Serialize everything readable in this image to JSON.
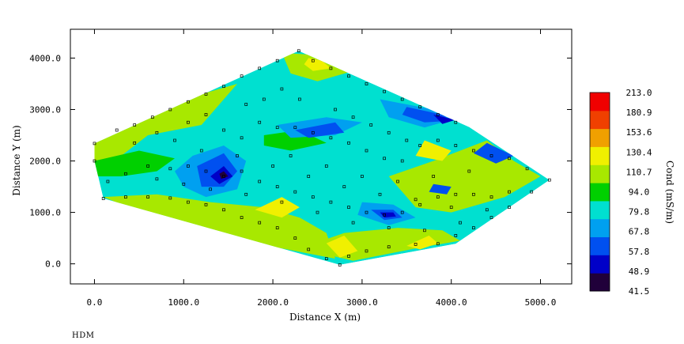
{
  "chart_data": {
    "type": "contour",
    "xlabel": "Distance X (m)",
    "ylabel": "Distance Y (m)",
    "xlim": [
      -270,
      5350
    ],
    "ylim": [
      -390,
      4560
    ],
    "x_ticks": [
      0,
      1000,
      2000,
      3000,
      4000,
      5000
    ],
    "x_tick_labels": [
      "0.0",
      "1000.0",
      "2000.0",
      "3000.0",
      "4000.0",
      "5000.0"
    ],
    "y_ticks": [
      0,
      1000,
      2000,
      3000,
      4000
    ],
    "y_tick_labels": [
      "0.0",
      "1000.0",
      "2000.0",
      "3000.0",
      "4000.0"
    ],
    "colorbar": {
      "label": "Cond (mS/m)",
      "levels": [
        41.5,
        48.9,
        57.8,
        67.8,
        79.8,
        94.0,
        110.7,
        130.4,
        153.6,
        180.9,
        213.0
      ],
      "level_labels": [
        "41.5",
        "48.9",
        "57.8",
        "67.8",
        "79.8",
        "94.0",
        "110.7",
        "130.4",
        "153.6",
        "180.9",
        "213.0"
      ],
      "colors": [
        "#20003a",
        "#0000c8",
        "#0050f0",
        "#00a0f0",
        "#00e0d0",
        "#00d000",
        "#a8e800",
        "#f0f000",
        "#f0a000",
        "#f04000",
        "#f00000"
      ]
    },
    "survey_boundary": [
      [
        0,
        2340
      ],
      [
        2290,
        4140
      ],
      [
        4200,
        2660
      ],
      [
        5100,
        1630
      ],
      [
        4050,
        390
      ],
      [
        2750,
        -20
      ],
      [
        100,
        1270
      ],
      [
        0,
        2000
      ]
    ],
    "stations": [
      [
        0,
        2340
      ],
      [
        0,
        2000
      ],
      [
        100,
        1270
      ],
      [
        250,
        2600
      ],
      [
        450,
        2350
      ],
      [
        700,
        2550
      ],
      [
        900,
        2400
      ],
      [
        1050,
        2750
      ],
      [
        1250,
        2900
      ],
      [
        1450,
        2600
      ],
      [
        1650,
        2450
      ],
      [
        1850,
        2750
      ],
      [
        2050,
        2650
      ],
      [
        2250,
        2650
      ],
      [
        2450,
        2550
      ],
      [
        2650,
        2450
      ],
      [
        2850,
        2350
      ],
      [
        3050,
        2200
      ],
      [
        3250,
        2050
      ],
      [
        3450,
        2000
      ],
      [
        3650,
        2300
      ],
      [
        3850,
        2400
      ],
      [
        4050,
        2300
      ],
      [
        4250,
        2200
      ],
      [
        4450,
        2100
      ],
      [
        4650,
        2050
      ],
      [
        4850,
        1850
      ],
      [
        5100,
        1630
      ],
      [
        4900,
        1400
      ],
      [
        4650,
        1100
      ],
      [
        4450,
        900
      ],
      [
        4250,
        700
      ],
      [
        4050,
        550
      ],
      [
        3850,
        390
      ],
      [
        3600,
        380
      ],
      [
        3300,
        330
      ],
      [
        3050,
        250
      ],
      [
        2850,
        150
      ],
      [
        2750,
        -20
      ],
      [
        2600,
        100
      ],
      [
        2400,
        280
      ],
      [
        2250,
        500
      ],
      [
        2050,
        700
      ],
      [
        1850,
        800
      ],
      [
        1650,
        900
      ],
      [
        1450,
        1050
      ],
      [
        1250,
        1150
      ],
      [
        1050,
        1200
      ],
      [
        850,
        1280
      ],
      [
        600,
        1300
      ],
      [
        350,
        1300
      ],
      [
        150,
        1600
      ],
      [
        350,
        1750
      ],
      [
        600,
        1900
      ],
      [
        850,
        1850
      ],
      [
        1050,
        1900
      ],
      [
        1250,
        1800
      ],
      [
        1450,
        1700
      ],
      [
        1650,
        1800
      ],
      [
        1850,
        1600
      ],
      [
        2050,
        1500
      ],
      [
        2250,
        1400
      ],
      [
        2450,
        1300
      ],
      [
        2650,
        1200
      ],
      [
        2850,
        1100
      ],
      [
        3050,
        1000
      ],
      [
        3250,
        950
      ],
      [
        3450,
        1000
      ],
      [
        3650,
        1150
      ],
      [
        3850,
        1300
      ],
      [
        4050,
        1350
      ],
      [
        4250,
        1350
      ],
      [
        4450,
        1300
      ],
      [
        4650,
        1400
      ],
      [
        2290,
        4140
      ],
      [
        2050,
        3950
      ],
      [
        1850,
        3800
      ],
      [
        1650,
        3650
      ],
      [
        1450,
        3450
      ],
      [
        1250,
        3300
      ],
      [
        1050,
        3150
      ],
      [
        850,
        3000
      ],
      [
        650,
        2850
      ],
      [
        450,
        2700
      ],
      [
        2450,
        3950
      ],
      [
        2650,
        3800
      ],
      [
        2850,
        3650
      ],
      [
        3050,
        3500
      ],
      [
        3250,
        3350
      ],
      [
        3450,
        3200
      ],
      [
        3650,
        3050
      ],
      [
        3850,
        2900
      ],
      [
        4050,
        2750
      ],
      [
        2100,
        3400
      ],
      [
        2300,
        3200
      ],
      [
        1900,
        3200
      ],
      [
        1700,
        3100
      ],
      [
        2700,
        3000
      ],
      [
        2900,
        2850
      ],
      [
        3100,
        2700
      ],
      [
        3300,
        2550
      ],
      [
        3500,
        2400
      ],
      [
        2200,
        2100
      ],
      [
        2600,
        1900
      ],
      [
        3000,
        1700
      ],
      [
        3400,
        1600
      ],
      [
        3800,
        1700
      ],
      [
        4200,
        1800
      ],
      [
        1200,
        2200
      ],
      [
        1600,
        2100
      ],
      [
        2000,
        1900
      ],
      [
        2400,
        1700
      ],
      [
        2800,
        1500
      ],
      [
        3200,
        1350
      ],
      [
        3600,
        1250
      ],
      [
        4000,
        1100
      ],
      [
        4400,
        1050
      ],
      [
        700,
        1650
      ],
      [
        1000,
        1550
      ],
      [
        1300,
        1450
      ],
      [
        1700,
        1350
      ],
      [
        2100,
        1200
      ],
      [
        2500,
        1000
      ],
      [
        2900,
        800
      ],
      [
        3300,
        700
      ],
      [
        3700,
        650
      ],
      [
        4100,
        800
      ]
    ]
  },
  "footer": {
    "label": "HDM"
  }
}
